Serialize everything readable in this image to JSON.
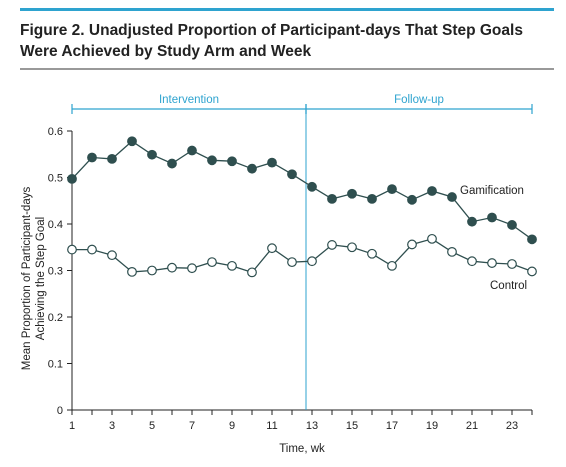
{
  "chart_data": {
    "type": "line",
    "title_lines": [
      "Figure 2. Unadjusted Proportion of Participant-days That Step Goals",
      "Were Achieved by Study Arm and Week"
    ],
    "xlabel": "Time, wk",
    "ylabel_lines": [
      "Mean Proportion of Participant-days",
      "Achieving the Step Goal"
    ],
    "xlim": [
      1,
      24
    ],
    "ylim": [
      0,
      0.6
    ],
    "x_ticks": [
      1,
      3,
      5,
      7,
      9,
      11,
      13,
      15,
      17,
      19,
      21,
      23
    ],
    "y_ticks": [
      "0",
      "0.1",
      "0.2",
      "0.3",
      "0.4",
      "0.5",
      "0.6"
    ],
    "grid": false,
    "phases": [
      {
        "label": "Intervention",
        "start": 1,
        "end": 12.7
      },
      {
        "label": "Follow-up",
        "start": 12.7,
        "end": 24
      }
    ],
    "divider_x": 12.7,
    "x": [
      1,
      2,
      3,
      4,
      5,
      6,
      7,
      8,
      9,
      10,
      11,
      12,
      13,
      14,
      15,
      16,
      17,
      18,
      19,
      20,
      21,
      22,
      23,
      24
    ],
    "series": [
      {
        "name": "Gamification",
        "marker": "filled",
        "color": "#2f4f4f",
        "values": [
          0.497,
          0.543,
          0.54,
          0.578,
          0.549,
          0.53,
          0.558,
          0.537,
          0.535,
          0.519,
          0.532,
          0.507,
          0.48,
          0.454,
          0.465,
          0.454,
          0.475,
          0.452,
          0.471,
          0.458,
          0.405,
          0.414,
          0.398,
          0.367
        ]
      },
      {
        "name": "Control",
        "marker": "open",
        "color": "#2f4f4f",
        "values": [
          0.345,
          0.345,
          0.333,
          0.297,
          0.3,
          0.306,
          0.305,
          0.318,
          0.31,
          0.296,
          0.348,
          0.318,
          0.32,
          0.355,
          0.35,
          0.336,
          0.31,
          0.356,
          0.368,
          0.34,
          0.32,
          0.316,
          0.314,
          0.298
        ]
      }
    ]
  },
  "colors": {
    "accent": "#2ea3cf",
    "line": "#2f4f4f",
    "axis": "#222222",
    "rule": "#999999"
  }
}
